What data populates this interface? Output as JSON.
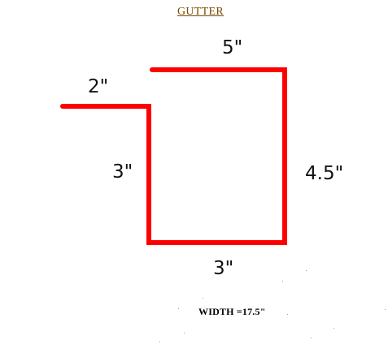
{
  "title": "GUTTER",
  "colors": {
    "title": "#7a4a00",
    "profile_line": "#ff0000",
    "text": "#111111"
  },
  "segments": [
    {
      "id": "flange-top-left",
      "label": "2\""
    },
    {
      "id": "left-side",
      "label": "3\""
    },
    {
      "id": "bottom",
      "label": "3\""
    },
    {
      "id": "right-side",
      "label": "4.5\""
    },
    {
      "id": "top",
      "label": "5\""
    }
  ],
  "width_label": "WIDTH  =17.5\""
}
